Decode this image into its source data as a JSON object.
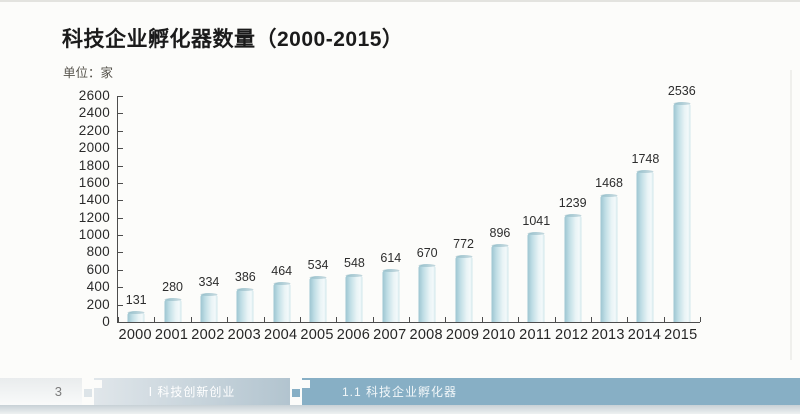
{
  "page": {
    "title": "科技企业孵化器数量（2000-2015）",
    "unit_label": "单位：家",
    "footer": {
      "page_number": "3",
      "chapter_label": "Ⅰ 科技创新创业",
      "section_label": "1.1 科技企业孵化器"
    }
  },
  "chart_data": {
    "type": "bar",
    "title": "科技企业孵化器数量（2000-2015）",
    "unit": "家",
    "categories": [
      "2000",
      "2001",
      "2002",
      "2003",
      "2004",
      "2005",
      "2006",
      "2007",
      "2008",
      "2009",
      "2010",
      "2011",
      "2012",
      "2013",
      "2014",
      "2015"
    ],
    "values": [
      131,
      280,
      334,
      386,
      464,
      534,
      548,
      614,
      670,
      772,
      896,
      1041,
      1239,
      1468,
      1748,
      2536
    ],
    "ylim": [
      0,
      2600
    ],
    "ytick_step": 200,
    "xlabel": "",
    "ylabel": "单位：家",
    "grid": false,
    "legend": "none",
    "value_labels_shown": true
  },
  "colors": {
    "bar_edge": "#9cc5d1",
    "bar_mid": "#e9f4f6",
    "axis": "#4d4d4d",
    "footer_page_bg": "#f0f2f3",
    "footer_chapter_bg": "#b9c9d3",
    "footer_section_bg": "#87afc5",
    "paper_bg": "#fcfcfa"
  }
}
